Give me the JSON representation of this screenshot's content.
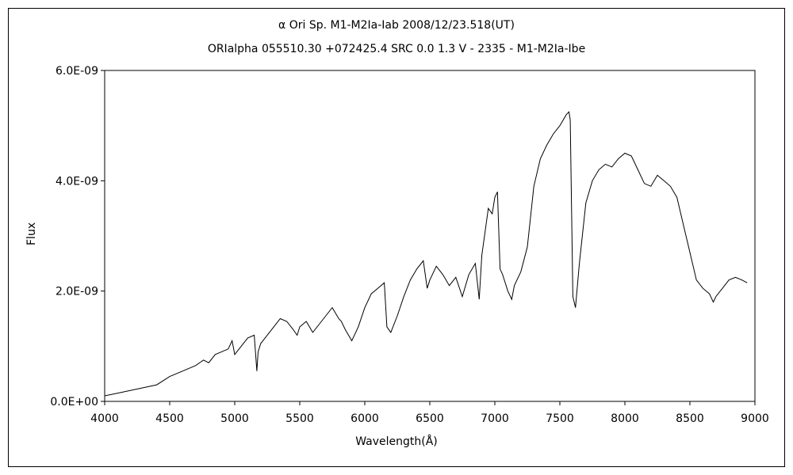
{
  "chart_data": {
    "type": "line",
    "title": "α Ori    Sp. M1-M2Ia-Iab   2008/12/23.518(UT)",
    "subtitle": "ORIalpha 055510.30 +072425.4 SRC 0.0 1.3 V - 2335 - M1-M2Ia-Ibe",
    "xlabel": "Wavelength(Å)",
    "ylabel": "Flux",
    "xlim": [
      4000,
      9000
    ],
    "ylim": [
      0,
      6e-09
    ],
    "xticks": [
      "4000",
      "4500",
      "5000",
      "5500",
      "6000",
      "6500",
      "7000",
      "7500",
      "8000",
      "8500",
      "9000"
    ],
    "yticks": [
      "0.0E+00",
      "2.0E-09",
      "4.0E-09",
      "6.0E-09"
    ],
    "grid": false,
    "series": [
      {
        "x": [
          4000,
          4100,
          4200,
          4300,
          4400,
          4500,
          4600,
          4700,
          4760,
          4800,
          4850,
          4900,
          4950,
          4980,
          5000,
          5050,
          5100,
          5150,
          5170,
          5180,
          5200,
          5250,
          5300,
          5350,
          5400,
          5450,
          5480,
          5500,
          5550,
          5600,
          5650,
          5700,
          5750,
          5800,
          5820,
          5850,
          5900,
          5950,
          6000,
          6050,
          6100,
          6150,
          6170,
          6200,
          6250,
          6300,
          6350,
          6400,
          6450,
          6480,
          6500,
          6550,
          6600,
          6650,
          6700,
          6750,
          6800,
          6850,
          6880,
          6900,
          6950,
          6980,
          7000,
          7020,
          7040,
          7060,
          7100,
          7130,
          7150,
          7200,
          7250,
          7300,
          7350,
          7400,
          7450,
          7500,
          7550,
          7570,
          7580,
          7600,
          7620,
          7650,
          7700,
          7750,
          7800,
          7850,
          7900,
          7950,
          8000,
          8050,
          8100,
          8150,
          8200,
          8250,
          8300,
          8350,
          8400,
          8450,
          8500,
          8550,
          8600,
          8650,
          8680,
          8700,
          8750,
          8800,
          8850,
          8900,
          8940
        ],
        "y": [
          1e-10,
          1.5e-10,
          2e-10,
          2.5e-10,
          3e-10,
          4.5e-10,
          5.5e-10,
          6.5e-10,
          7.5e-10,
          7e-10,
          8.5e-10,
          9e-10,
          9.5e-10,
          1.1e-09,
          8.5e-10,
          1e-09,
          1.15e-09,
          1.2e-09,
          5.5e-10,
          9e-10,
          1.05e-09,
          1.2e-09,
          1.35e-09,
          1.5e-09,
          1.45e-09,
          1.3e-09,
          1.2e-09,
          1.35e-09,
          1.45e-09,
          1.25e-09,
          1.4e-09,
          1.55e-09,
          1.7e-09,
          1.5e-09,
          1.45e-09,
          1.3e-09,
          1.1e-09,
          1.35e-09,
          1.7e-09,
          1.95e-09,
          2.05e-09,
          2.15e-09,
          1.35e-09,
          1.25e-09,
          1.55e-09,
          1.9e-09,
          2.2e-09,
          2.4e-09,
          2.55e-09,
          2.05e-09,
          2.2e-09,
          2.45e-09,
          2.3e-09,
          2.1e-09,
          2.25e-09,
          1.9e-09,
          2.3e-09,
          2.5e-09,
          1.85e-09,
          2.65e-09,
          3.5e-09,
          3.4e-09,
          3.7e-09,
          3.8e-09,
          2.4e-09,
          2.3e-09,
          2e-09,
          1.85e-09,
          2.1e-09,
          2.35e-09,
          2.8e-09,
          3.9e-09,
          4.4e-09,
          4.65e-09,
          4.85e-09,
          5e-09,
          5.2e-09,
          5.25e-09,
          5.1e-09,
          1.9e-09,
          1.7e-09,
          2.5e-09,
          3.6e-09,
          4e-09,
          4.2e-09,
          4.3e-09,
          4.25e-09,
          4.4e-09,
          4.5e-09,
          4.45e-09,
          4.2e-09,
          3.95e-09,
          3.9e-09,
          4.1e-09,
          4e-09,
          3.9e-09,
          3.7e-09,
          3.2e-09,
          2.7e-09,
          2.2e-09,
          2.05e-09,
          1.95e-09,
          1.8e-09,
          1.9e-09,
          2.05e-09,
          2.2e-09,
          2.25e-09,
          2.2e-09,
          2.15e-09
        ]
      }
    ]
  }
}
